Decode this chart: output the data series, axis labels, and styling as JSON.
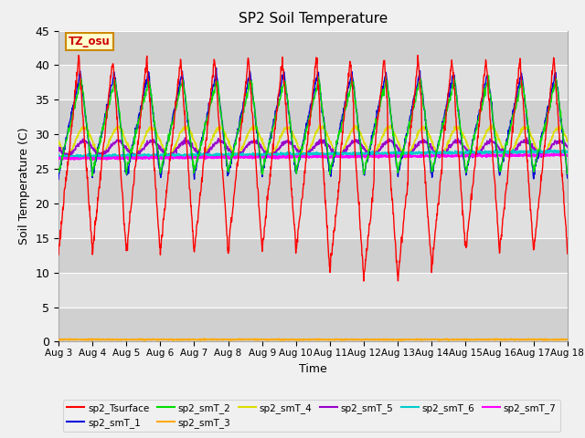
{
  "title": "SP2 Soil Temperature",
  "ylabel": "Soil Temperature (C)",
  "xlabel": "Time",
  "ylim": [
    0,
    45
  ],
  "yticks": [
    0,
    5,
    10,
    15,
    20,
    25,
    30,
    35,
    40,
    45
  ],
  "xtick_labels": [
    "Aug 3",
    "Aug 4",
    "Aug 5",
    "Aug 6",
    "Aug 7",
    "Aug 8",
    "Aug 9",
    "Aug 10",
    "Aug 11",
    "Aug 12",
    "Aug 13",
    "Aug 14",
    "Aug 15",
    "Aug 16",
    "Aug 17",
    "Aug 18"
  ],
  "tz_label": "TZ_osu",
  "colors": {
    "sp2_Tsurface": "#ff0000",
    "sp2_smT_1": "#0000dd",
    "sp2_smT_2": "#00dd00",
    "sp2_smT_3": "#ffaa00",
    "sp2_smT_4": "#dddd00",
    "sp2_smT_5": "#9900cc",
    "sp2_smT_6": "#00cccc",
    "sp2_smT_7": "#ff00ff"
  },
  "fig_bg": "#f0f0f0",
  "plot_bg": "#d8d8d8",
  "grid_color": "#ffffff",
  "band_color1": "#d0d0d0",
  "band_color2": "#e0e0e0"
}
